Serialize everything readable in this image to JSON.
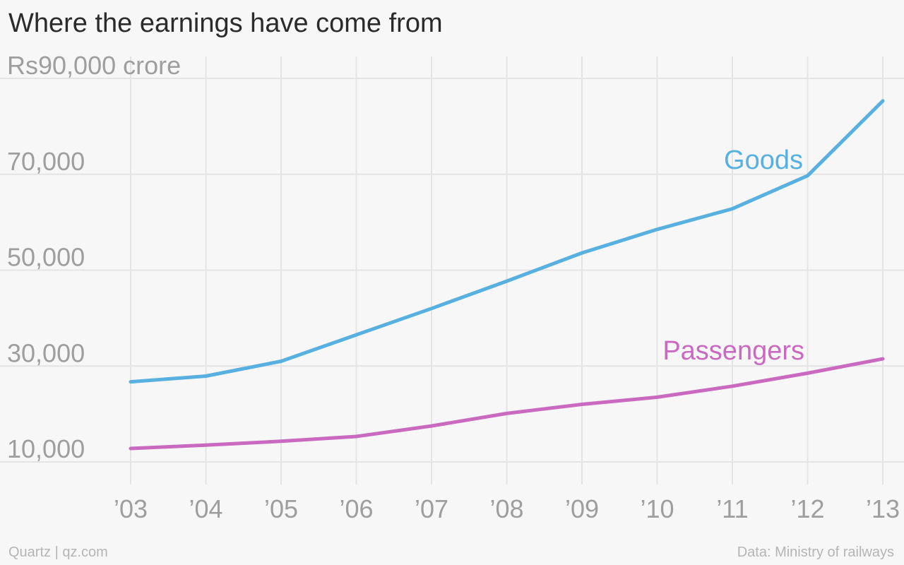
{
  "title": "Where the earnings have come from",
  "footer": {
    "credit": "Quartz | qz.com",
    "source": "Data: Ministry of railways"
  },
  "colors": {
    "goods": "#57b0e0",
    "passengers": "#c96ac0",
    "grid": "#e4e4e4",
    "tick_text": "#9e9e9e"
  },
  "chart_data": {
    "type": "line",
    "x": [
      "’03",
      "’04",
      "’05",
      "’06",
      "’07",
      "’08",
      "’09",
      "’10",
      "’11",
      "’12",
      "’13"
    ],
    "series": [
      {
        "name": "Goods",
        "values": [
          26700,
          27900,
          31000,
          36500,
          42000,
          47700,
          53600,
          58500,
          62800,
          69700,
          85300
        ]
      },
      {
        "name": "Passengers",
        "values": [
          12800,
          13500,
          14300,
          15300,
          17500,
          20100,
          22000,
          23500,
          25800,
          28500,
          31500
        ]
      }
    ],
    "ylim": [
      10000,
      90000
    ],
    "yticks": [
      10000,
      30000,
      50000,
      70000,
      90000
    ],
    "ytick_labels": [
      "10,000",
      "30,000",
      "50,000",
      "70,000",
      "Rs90,000 crore"
    ],
    "grid": true,
    "legend": "inline labels near line ends"
  }
}
